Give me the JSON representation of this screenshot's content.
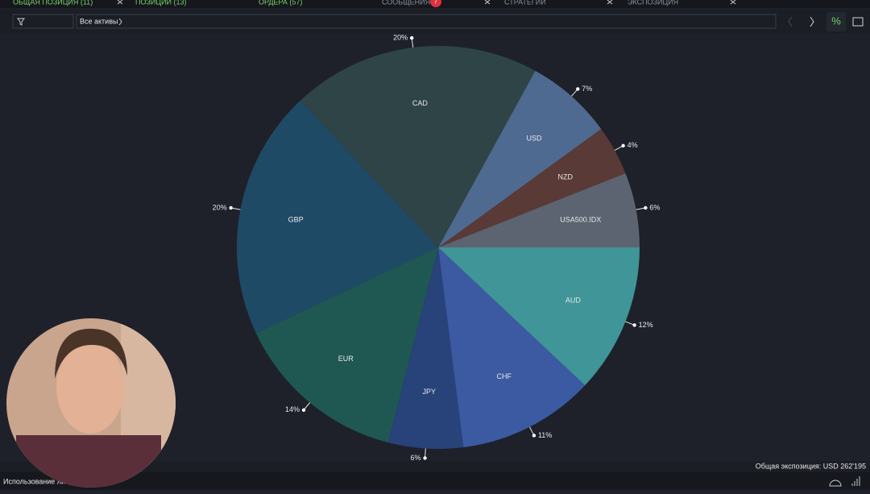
{
  "tabs": [
    {
      "label": "ОБЩАЯ ПОЗИЦИЯ (11)"
    },
    {
      "label": "ПОЗИЦИИ (13)"
    },
    {
      "label": "ОРДЕРА (57)"
    },
    {
      "label": "СООБЩЕНИЯ",
      "badge": "7"
    },
    {
      "label": "СТРАТЕГИИ"
    },
    {
      "label": "ЭКСПОЗИЦИЯ"
    }
  ],
  "toolbar": {
    "filter": "Все активы"
  },
  "chart_data": {
    "type": "pie",
    "categories": [
      "USA500.IDX",
      "NZD",
      "USD",
      "CAD",
      "GBP",
      "EUR",
      "JPY",
      "CHF",
      "AUD"
    ],
    "values": [
      6,
      4,
      7,
      20,
      20,
      14,
      6,
      11,
      12
    ],
    "value_labels": [
      "6%",
      "4%",
      "7%",
      "20%",
      "20%",
      "14%",
      "6%",
      "11%",
      "12%"
    ],
    "colors": [
      "#5b6470",
      "#5a3a36",
      "#4f6a90",
      "#2f4447",
      "#1f4a66",
      "#1f5852",
      "#28427a",
      "#3c5aa2",
      "#3f9597"
    ]
  },
  "footer": {
    "exposure": "Общая экспозиция: USD 262'195",
    "usage": "Использование ли"
  }
}
